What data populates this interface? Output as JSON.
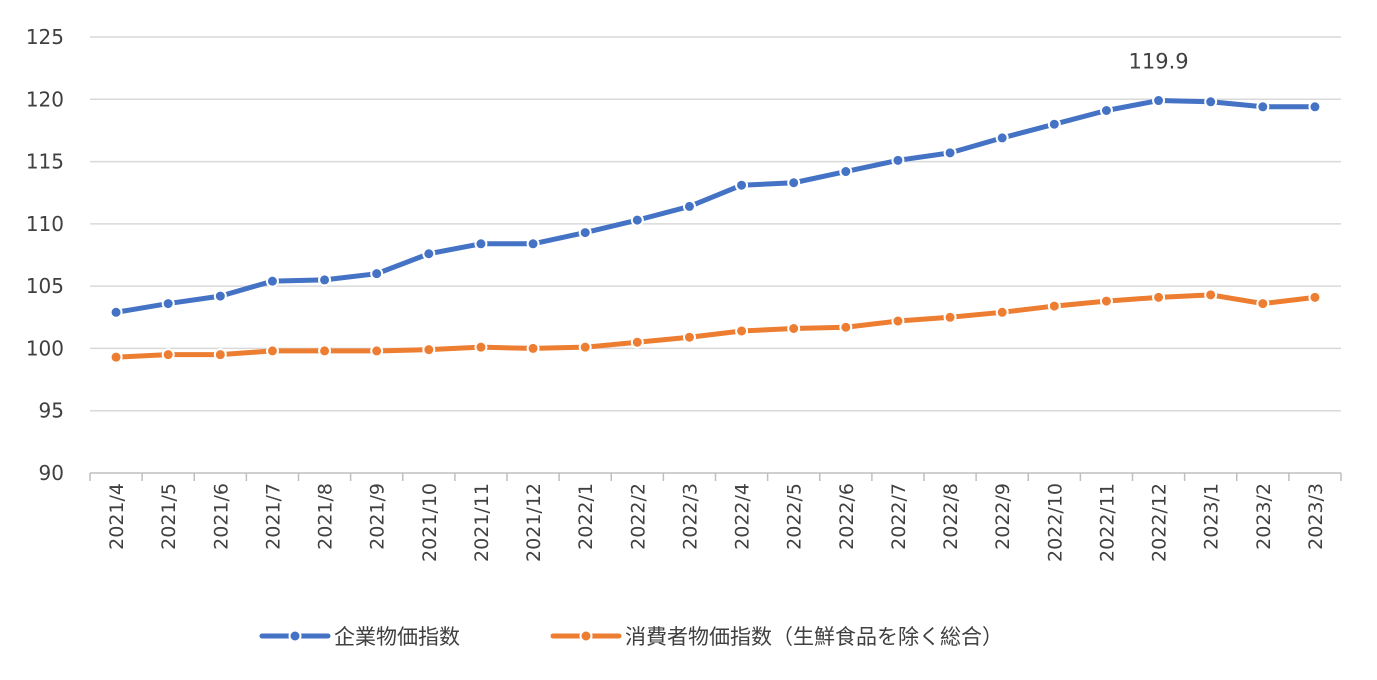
{
  "chart_data": {
    "type": "line",
    "title": "",
    "xlabel": "",
    "ylabel": "",
    "ylim": [
      90,
      125
    ],
    "yticks": [
      90,
      95,
      100,
      105,
      110,
      115,
      120,
      125
    ],
    "grid": "horizontal",
    "legend_position": "bottom",
    "categories": [
      "2021/4",
      "2021/5",
      "2021/6",
      "2021/7",
      "2021/8",
      "2021/9",
      "2021/10",
      "2021/11",
      "2021/12",
      "2022/1",
      "2022/2",
      "2022/3",
      "2022/4",
      "2022/5",
      "2022/6",
      "2022/7",
      "2022/8",
      "2022/9",
      "2022/10",
      "2022/11",
      "2022/12",
      "2023/1",
      "2023/2",
      "2023/3"
    ],
    "series": [
      {
        "name": "企業物価指数",
        "color": "#4472C4",
        "values": [
          102.9,
          103.6,
          104.2,
          105.4,
          105.5,
          106.0,
          107.6,
          108.4,
          108.4,
          109.3,
          110.3,
          111.4,
          113.1,
          113.3,
          114.2,
          115.1,
          115.7,
          116.9,
          118.0,
          119.1,
          119.9,
          119.8,
          119.4,
          119.4
        ]
      },
      {
        "name": "消費者物価指数（生鮮食品を除く総合）",
        "color": "#ED7D31",
        "values": [
          99.3,
          99.5,
          99.5,
          99.8,
          99.8,
          99.8,
          99.9,
          100.1,
          100.0,
          100.1,
          100.5,
          100.9,
          101.4,
          101.6,
          101.7,
          102.2,
          102.5,
          102.9,
          103.4,
          103.8,
          104.1,
          104.3,
          103.6,
          104.1
        ]
      }
    ],
    "annotations": [
      {
        "series_index": 0,
        "category": "2022/12",
        "text": "119.9"
      }
    ]
  }
}
